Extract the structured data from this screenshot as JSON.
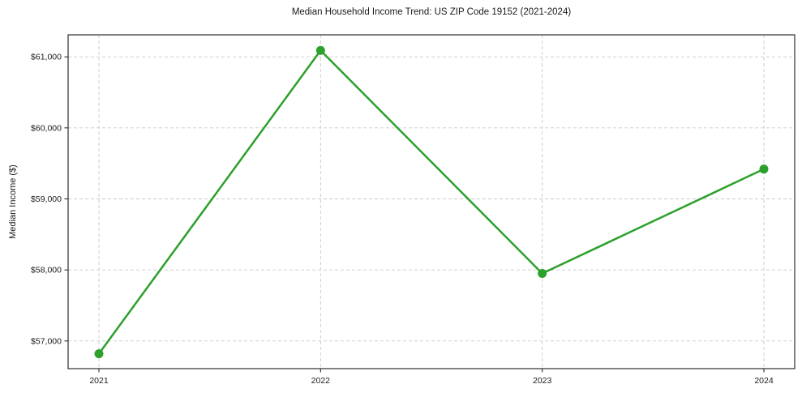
{
  "chart_data": {
    "type": "line",
    "title": "Median Household Income Trend: US ZIP Code 19152 (2021-2024)",
    "xlabel": "",
    "ylabel": "Median Income ($)",
    "categories": [
      "2021",
      "2022",
      "2023",
      "2024"
    ],
    "series": [
      {
        "name": "Median Household Income",
        "values": [
          56820,
          61090,
          57950,
          59420
        ]
      }
    ],
    "ytick_values": [
      57000,
      58000,
      59000,
      60000,
      61000
    ],
    "ytick_labels": [
      "$57,000",
      "$58,000",
      "$59,000",
      "$60,000",
      "$61,000"
    ],
    "ylim": [
      56610,
      61310
    ],
    "grid": true,
    "grid_style": "dashed",
    "legend": false,
    "colors": {
      "line": "#2ca02c",
      "marker": "#2ca02c",
      "grid": "#c9c9c9",
      "spine": "#1a1a1a",
      "text": "#1a1a1a",
      "background": "#ffffff"
    }
  }
}
